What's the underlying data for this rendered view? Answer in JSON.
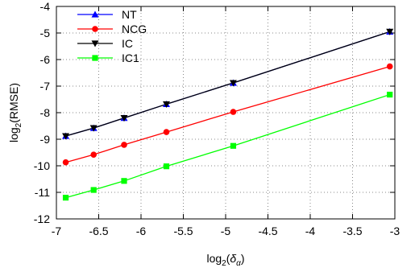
{
  "chart_data": {
    "type": "line",
    "xlabel_base": "log",
    "xlabel_sub": "2",
    "xlabel_arg": "δ",
    "xlabel_arg_sub": "α",
    "ylabel_base": "log",
    "ylabel_sub": "2",
    "ylabel_arg": "(RMSE)",
    "xlim": [
      -7,
      -3
    ],
    "ylim": [
      -12,
      -4
    ],
    "xticks": [
      -7,
      -6.5,
      -6,
      -5.5,
      -5,
      -4.5,
      -4,
      -3.5,
      -3
    ],
    "yticks": [
      -12,
      -11,
      -10,
      -9,
      -8,
      -7,
      -6,
      -5,
      -4
    ],
    "grid": true,
    "legend_position": "top-left",
    "x": [
      -6.89,
      -6.56,
      -6.2,
      -5.7,
      -4.91,
      -3.06
    ],
    "series": [
      {
        "name": "NT",
        "color": "#0000ff",
        "marker": "triangle-up",
        "values": [
          -8.88,
          -8.58,
          -8.2,
          -7.68,
          -6.88,
          -4.95
        ]
      },
      {
        "name": "NCG",
        "color": "#ff0000",
        "marker": "circle",
        "values": [
          -9.87,
          -9.58,
          -9.21,
          -8.73,
          -7.97,
          -6.26
        ]
      },
      {
        "name": "IC",
        "color": "#000000",
        "marker": "triangle-down",
        "values": [
          -8.88,
          -8.58,
          -8.2,
          -7.68,
          -6.88,
          -4.95
        ]
      },
      {
        "name": "IC1",
        "color": "#00ff00",
        "marker": "square",
        "values": [
          -11.2,
          -10.91,
          -10.57,
          -10.02,
          -9.25,
          -7.32
        ]
      }
    ]
  }
}
